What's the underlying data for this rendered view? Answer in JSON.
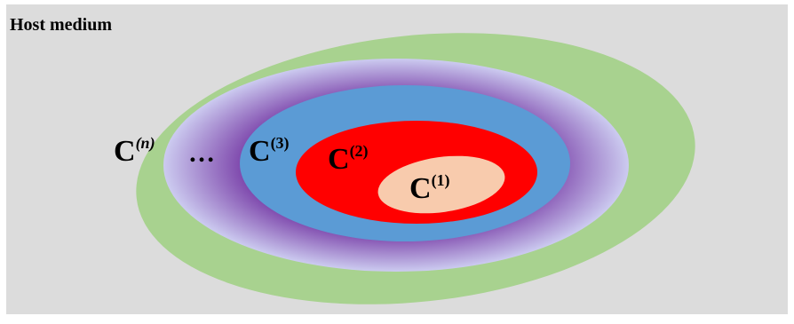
{
  "title": "Host medium",
  "colors": {
    "background": "#dcdcdc",
    "layer_n": "#a8d28f",
    "layer_dots_inner": "#cccbf0",
    "layer_dots_outer": "#7030a0",
    "layer_3": "#5b9bd5",
    "layer_2": "#ff0000",
    "layer_1": "#f8cbad",
    "text": "#000000"
  },
  "layers": [
    {
      "id": "n",
      "base": "C",
      "sup": "(n)",
      "sup_italic": true
    },
    {
      "id": "dots",
      "text": "…"
    },
    {
      "id": "3",
      "base": "C",
      "sup": "(3)"
    },
    {
      "id": "2",
      "base": "C",
      "sup": "(2)"
    },
    {
      "id": "1",
      "base": "C",
      "sup": "(1)"
    }
  ]
}
